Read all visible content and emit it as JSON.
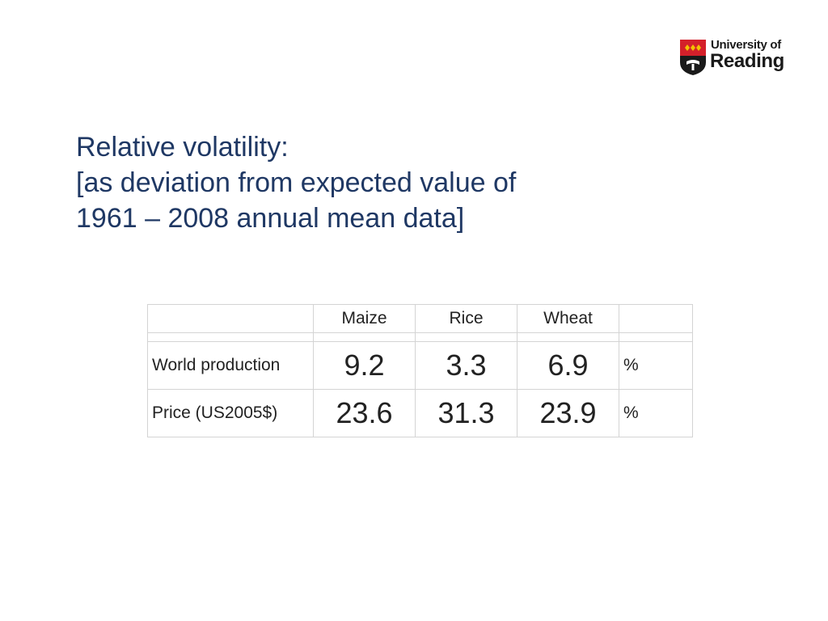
{
  "logo": {
    "line1": "University of",
    "line2": "Reading",
    "colors": {
      "shield_red": "#d4202a",
      "shield_black": "#1a1a1a",
      "diamond_gold": "#f2c200"
    }
  },
  "title": {
    "line1": "Relative volatility:",
    "line2": "[as deviation from expected value of",
    "line3": "1961 – 2008 annual mean data]",
    "color": "#1f3864"
  },
  "table": {
    "headers": [
      "",
      "Maize",
      "Rice",
      "Wheat",
      ""
    ],
    "rows": [
      {
        "label": "World production",
        "values": [
          "9.2",
          "3.3",
          "6.9"
        ],
        "unit": "%"
      },
      {
        "label": "Price (US2005$)",
        "values": [
          "23.6",
          "31.3",
          "23.9"
        ],
        "unit": "%"
      }
    ]
  }
}
